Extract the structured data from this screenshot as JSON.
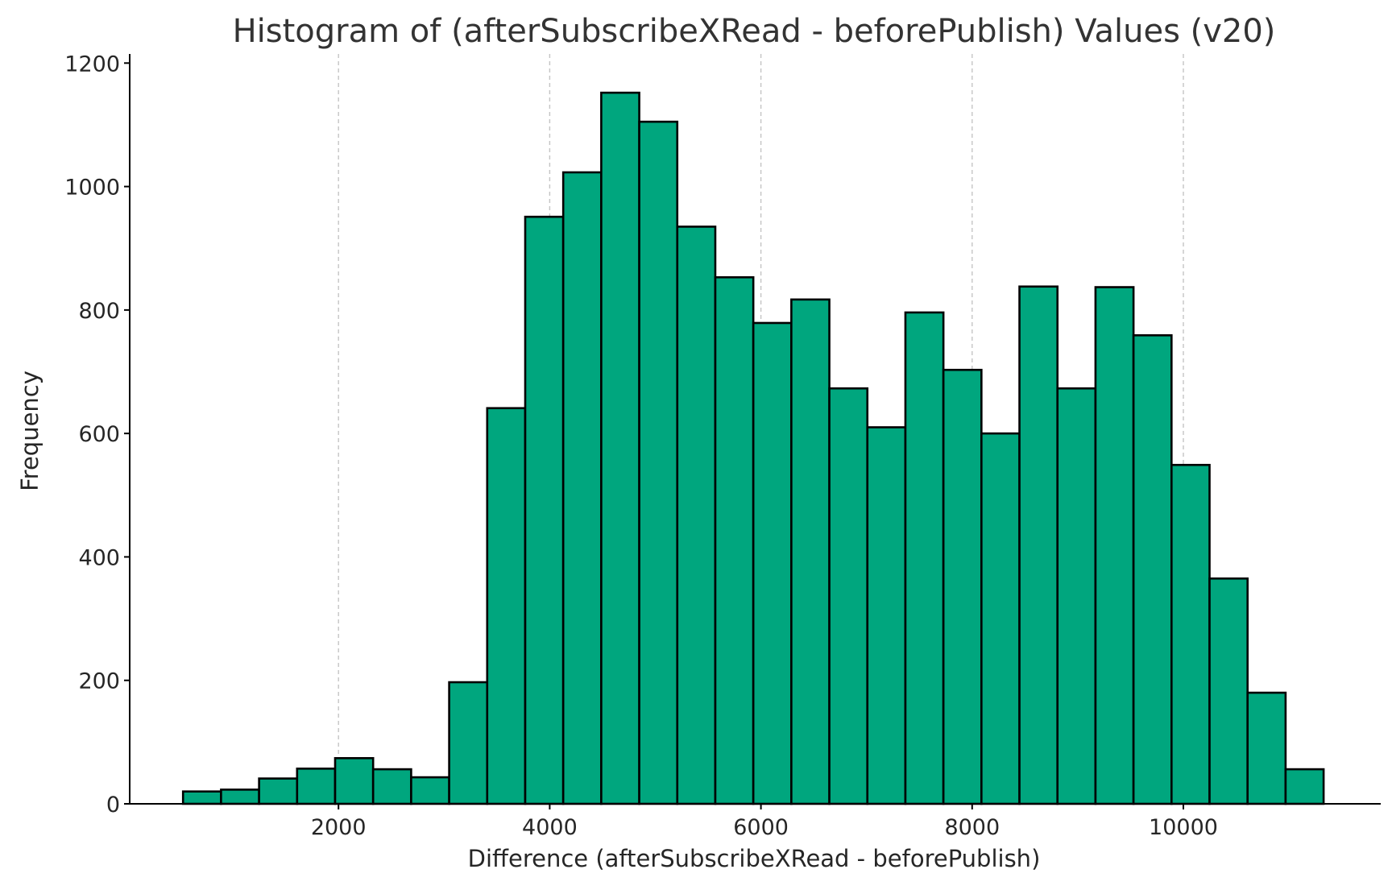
{
  "chart_data": {
    "type": "bar",
    "title": "Histogram of (afterSubscribeXRead - beforePublish) Values (v20)",
    "xlabel": "Difference (afterSubscribeXRead - beforePublish)",
    "ylabel": "Frequency",
    "xlim": [
      0,
      11700
    ],
    "ylim": [
      0,
      1210
    ],
    "x_ticks": [
      2000,
      4000,
      6000,
      8000,
      10000
    ],
    "y_ticks": [
      0,
      200,
      400,
      600,
      800,
      1000,
      1200
    ],
    "x_grid": true,
    "y_grid": false,
    "bar_color": "#00a67e",
    "edge_color": "#000000",
    "bin_edges": [
      528,
      888,
      1248,
      1608,
      1968,
      2328,
      2688,
      3048,
      3408,
      3768,
      4128,
      4488,
      4848,
      5208,
      5568,
      5928,
      6288,
      6648,
      7008,
      7368,
      7728,
      8088,
      8448,
      8808,
      9168,
      9528,
      9888,
      10248,
      10608,
      10968,
      11328
    ],
    "values": [
      20,
      23,
      41,
      57,
      74,
      56,
      43,
      197,
      641,
      951,
      1023,
      1152,
      1105,
      935,
      853,
      779,
      817,
      673,
      610,
      796,
      703,
      600,
      838,
      673,
      837,
      759,
      549,
      365,
      180,
      56
    ]
  }
}
